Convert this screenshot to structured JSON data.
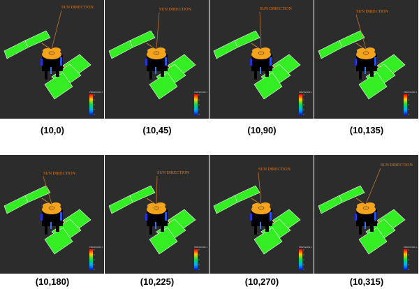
{
  "sun_direction_label": "SUN DIRECTION",
  "colorbar_title": "PRESSURE 1",
  "panels": [
    {
      "label": "(10,0)"
    },
    {
      "label": "(10,45)"
    },
    {
      "label": "(10,90)"
    },
    {
      "label": "(10,135)"
    },
    {
      "label": "(10,180)"
    },
    {
      "label": "(10,225)"
    },
    {
      "label": "(10,270)"
    },
    {
      "label": "(10,315)"
    }
  ],
  "colors": {
    "background": "#2c2c2c",
    "solar_panel": "#33ee22",
    "spacecraft_body": "#f5a31a",
    "sun_line": "#d07b30",
    "separator": "#ffffff"
  }
}
